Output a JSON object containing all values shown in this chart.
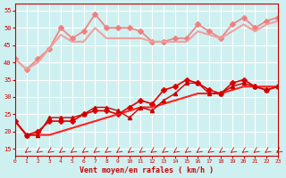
{
  "title": "",
  "xlabel": "Vent moyen/en rafales ( km/h )",
  "ylabel": "",
  "bg_color": "#cff0f0",
  "grid_color": "#ffffff",
  "xlim": [
    0,
    23
  ],
  "ylim": [
    13,
    57
  ],
  "yticks": [
    15,
    20,
    25,
    30,
    35,
    40,
    45,
    50,
    55
  ],
  "xticks": [
    0,
    1,
    2,
    3,
    4,
    5,
    6,
    7,
    8,
    9,
    10,
    11,
    12,
    13,
    14,
    15,
    16,
    17,
    18,
    19,
    20,
    21,
    22,
    23
  ],
  "lines_light": [
    {
      "x": [
        0,
        1,
        2,
        3,
        4,
        5,
        6,
        7,
        8,
        9,
        10,
        11,
        12,
        13,
        14,
        15,
        16,
        17,
        18,
        19,
        20,
        21,
        22,
        23
      ],
      "y": [
        41,
        38,
        41,
        44,
        50,
        47,
        49,
        54,
        50,
        50,
        50,
        49,
        46,
        46,
        47,
        47,
        51,
        49,
        47,
        51,
        53,
        50,
        52,
        53
      ],
      "color": "#f08080",
      "marker": "D",
      "ms": 3,
      "lw": 1.2
    },
    {
      "x": [
        0,
        1,
        2,
        3,
        4,
        5,
        6,
        7,
        8,
        9,
        10,
        11,
        12,
        13,
        14,
        15,
        16,
        17,
        18,
        19,
        20,
        21,
        22,
        23
      ],
      "y": [
        41,
        38,
        40,
        44,
        48,
        46,
        46,
        50,
        47,
        47,
        47,
        47,
        46,
        46,
        46,
        46,
        49,
        48,
        47,
        49,
        51,
        49,
        51,
        52
      ],
      "color": "#f0a0a0",
      "marker": "None",
      "ms": 0,
      "lw": 1.5
    }
  ],
  "lines_dark": [
    {
      "x": [
        0,
        1,
        2,
        3,
        4,
        5,
        6,
        7,
        8,
        9,
        10,
        11,
        12,
        13,
        14,
        15,
        16,
        17,
        18,
        19,
        20,
        21,
        22,
        23
      ],
      "y": [
        23,
        19,
        20,
        23,
        23,
        23,
        25,
        26,
        26,
        25,
        27,
        29,
        28,
        32,
        33,
        35,
        34,
        32,
        31,
        34,
        35,
        33,
        32,
        33
      ],
      "color": "#dd0000",
      "marker": "D",
      "ms": 3,
      "lw": 1.2
    },
    {
      "x": [
        0,
        1,
        2,
        3,
        4,
        5,
        6,
        7,
        8,
        9,
        10,
        11,
        12,
        13,
        14,
        15,
        16,
        17,
        18,
        19,
        20,
        21,
        22,
        23
      ],
      "y": [
        23,
        19,
        19,
        19,
        20,
        21,
        22,
        23,
        24,
        25,
        26,
        27,
        27,
        28,
        29,
        30,
        31,
        31,
        31,
        32,
        33,
        33,
        33,
        33
      ],
      "color": "#ff2020",
      "marker": "None",
      "ms": 0,
      "lw": 1.5
    },
    {
      "x": [
        0,
        1,
        2,
        3,
        4,
        5,
        6,
        7,
        8,
        9,
        10,
        11,
        12,
        13,
        14,
        15,
        16,
        17,
        18,
        19,
        20,
        21,
        22,
        23
      ],
      "y": [
        23,
        19,
        19,
        24,
        24,
        24,
        25,
        27,
        27,
        26,
        24,
        27,
        26,
        29,
        31,
        34,
        34,
        31,
        31,
        33,
        34,
        33,
        32,
        33
      ],
      "color": "#cc0000",
      "marker": "^",
      "ms": 3,
      "lw": 1.0
    }
  ],
  "arrow_color": "#cc0000",
  "xlabel_color": "#cc0000",
  "tick_color": "#cc0000",
  "tick_label_color": "#cc0000"
}
